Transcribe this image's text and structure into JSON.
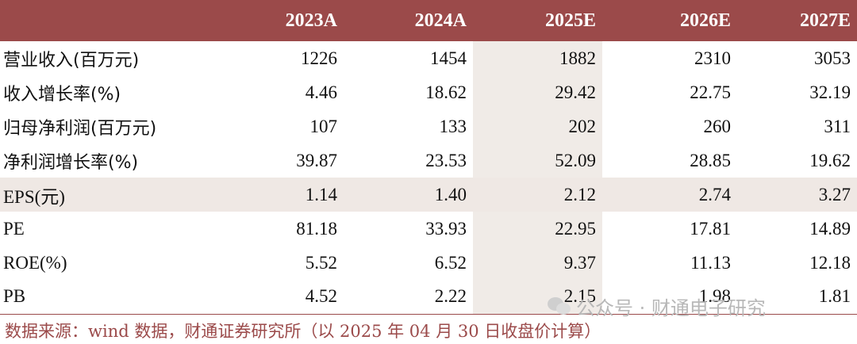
{
  "table": {
    "headers": [
      "",
      "2023A",
      "2024A",
      "2025E",
      "2026E",
      "2027E"
    ],
    "rows": [
      {
        "label": "营业收入(百万元)",
        "values": [
          "1226",
          "1454",
          "1882",
          "2310",
          "3053"
        ]
      },
      {
        "label": "收入增长率(%)",
        "values": [
          "4.46",
          "18.62",
          "29.42",
          "22.75",
          "32.19"
        ]
      },
      {
        "label": "归母净利润(百万元)",
        "values": [
          "107",
          "133",
          "202",
          "260",
          "311"
        ]
      },
      {
        "label": "净利润增长率(%)",
        "values": [
          "39.87",
          "23.53",
          "52.09",
          "28.85",
          "19.62"
        ]
      },
      {
        "label": "EPS(元)",
        "values": [
          "1.14",
          "1.40",
          "2.12",
          "2.74",
          "3.27"
        ]
      },
      {
        "label": "PE",
        "values": [
          "81.18",
          "33.93",
          "22.95",
          "17.81",
          "14.89"
        ]
      },
      {
        "label": "ROE(%)",
        "values": [
          "5.52",
          "6.52",
          "9.37",
          "11.13",
          "12.18"
        ]
      },
      {
        "label": "PB",
        "values": [
          "4.52",
          "2.22",
          "2.15",
          "1.98",
          "1.81"
        ]
      }
    ]
  },
  "source": "数据来源：wind 数据，财通证券研究所（以 2025 年 04 月 30 日收盘价计算）",
  "watermark": "公众号 · 财通电子研究",
  "colors": {
    "header_bg": "#9b4a4a",
    "shade": "#efe8e4",
    "source_text": "#9b4a4a"
  }
}
